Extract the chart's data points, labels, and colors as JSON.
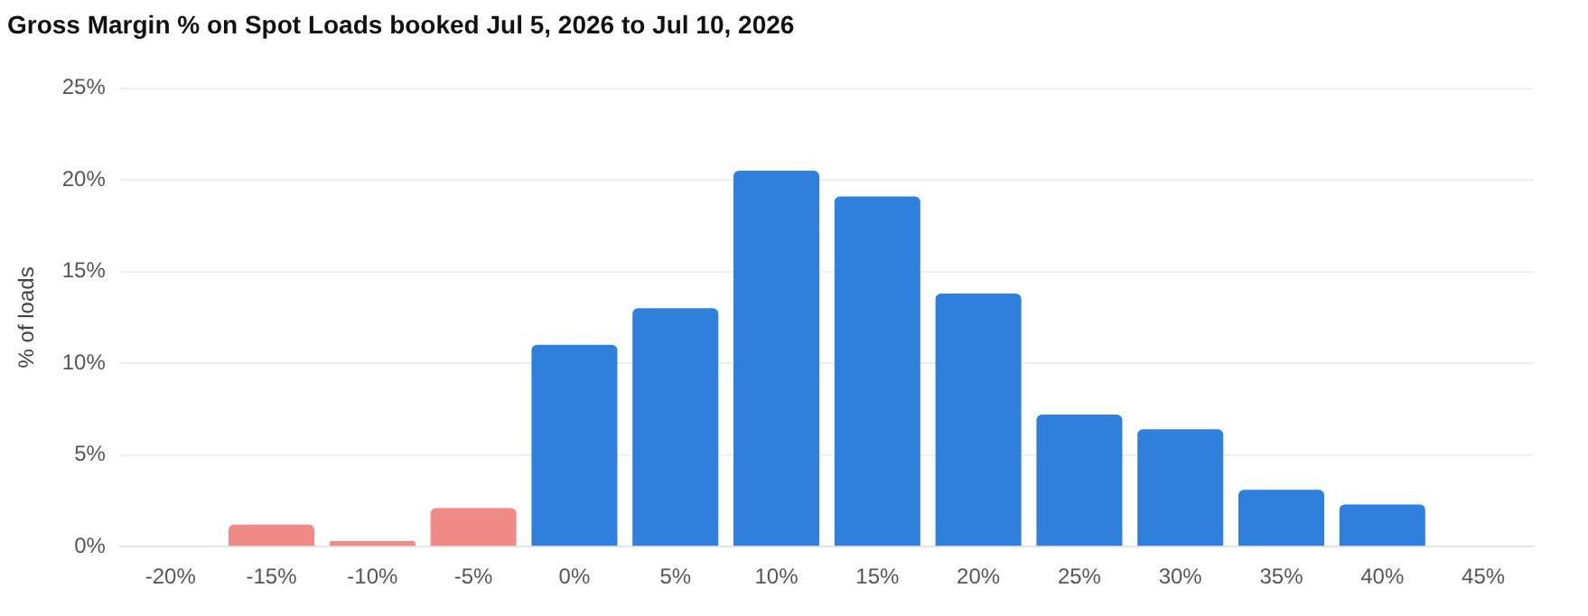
{
  "chart_data": {
    "type": "bar",
    "title": "Gross Margin % on Spot Loads booked Jul 5, 2026 to Jul 10, 2026",
    "ylabel": "% of loads",
    "categories": [
      "-20%",
      "-15%",
      "-10%",
      "-5%",
      "0%",
      "5%",
      "10%",
      "15%",
      "20%",
      "25%",
      "30%",
      "35%",
      "40%",
      "45%"
    ],
    "values": [
      0,
      1.2,
      0.3,
      2.1,
      11,
      13,
      20.5,
      19.1,
      13.8,
      7.2,
      6.4,
      3.1,
      2.3,
      0
    ],
    "colors": [
      "#f08a87",
      "#f08a87",
      "#f08a87",
      "#f08a87",
      "#2f80dd",
      "#2f80dd",
      "#2f80dd",
      "#2f80dd",
      "#2f80dd",
      "#2f80dd",
      "#2f80dd",
      "#2f80dd",
      "#2f80dd",
      "#2f80dd"
    ],
    "ylim": [
      0,
      25
    ],
    "yticks": [
      {
        "value": 0,
        "label": "0%"
      },
      {
        "value": 5,
        "label": "5%"
      },
      {
        "value": 10,
        "label": "10%"
      },
      {
        "value": 15,
        "label": "15%"
      },
      {
        "value": 20,
        "label": "20%"
      },
      {
        "value": 25,
        "label": "25%"
      }
    ],
    "grid": "y",
    "legend": false
  }
}
